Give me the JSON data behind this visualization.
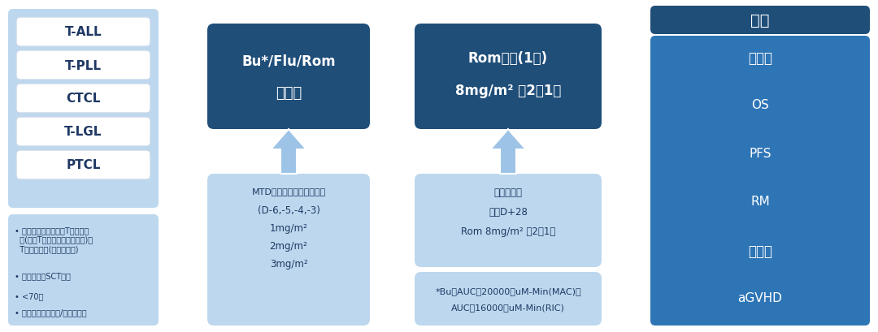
{
  "bg_color": "#FFFFFF",
  "page_bg": "#F0F0F0",
  "light_blue": "#BDD7EE",
  "lighter_blue": "#DEEAF1",
  "dark_blue": "#1F4E79",
  "mid_blue": "#2E75B6",
  "navy": "#1F3864",
  "white": "#FFFFFF",
  "text_dark": "#1F3864",
  "box1_labels": [
    "T-ALL",
    "T-PLL",
    "CTCL",
    "T-LGL",
    "PTCL"
  ],
  "box2_line1": "Bu*/Flu/Rom",
  "box2_line2": "预治疗",
  "box3_line1": "Rom维持(1年)",
  "box3_line2": "8mg/m² 每2周1次",
  "result_title": "结果",
  "result_items": [
    "安全性",
    "OS",
    "PFS",
    "RM",
    "复发率",
    "aGVHD"
  ],
  "mtd_lines": [
    "MTD：预治疗阶段剂量递增",
    "(D-6,-5,-4,-3)",
    "1mg/m²",
    "2mg/m²",
    "3mg/m²"
  ],
  "maintain_lines": [
    "维持阶段：",
    "开始D+28",
    "Rom 8mg/m² 每2周1次"
  ],
  "bu_lines": [
    "*Bu，AUC，20000，uM-Min(MAC)或",
    "AUC，16000，uM-Min(RIC)"
  ],
  "criteria_bullets": [
    "至少达到部分缓解的T细胞白血病(包括T急性淋巴细胞白血病)或T细胞淋巴瘤(皮肤或外周)",
    "需要异基因SCT治疗",
    "<70岁",
    "具有匹配同胞供体/非血缘供体"
  ]
}
